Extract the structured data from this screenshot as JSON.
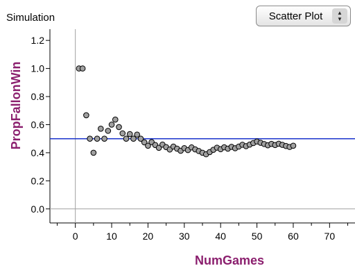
{
  "panel": {
    "title": "Simulation"
  },
  "plot_type_menu": {
    "selected": "Scatter Plot",
    "stepper_icon": "up-down-arrows-icon"
  },
  "colors": {
    "point_fill": "#a0a0a0",
    "point_stroke": "#000000",
    "reference_line": "#1a33cc",
    "axis_title": "#8b1f6e",
    "zero_line": "#a0a0a0"
  },
  "chart_data": {
    "type": "scatter",
    "title": "",
    "xlabel": "NumGames",
    "ylabel": "PropFallonWin",
    "xlim": [
      -7,
      77
    ],
    "ylim": [
      -0.1,
      1.28
    ],
    "xticks": [
      0,
      10,
      20,
      30,
      40,
      50,
      60,
      70
    ],
    "yticks": [
      0.0,
      0.2,
      0.4,
      0.6,
      0.8,
      1.0,
      1.2
    ],
    "xtick_labels": [
      "0",
      "10",
      "20",
      "30",
      "40",
      "50",
      "60",
      "70"
    ],
    "ytick_labels": [
      "0.0",
      "0.2",
      "0.4",
      "0.6",
      "0.8",
      "1.0",
      "1.2"
    ],
    "reference_line_y": 0.5,
    "grid": false,
    "series": [
      {
        "x": [
          1,
          2,
          3,
          4,
          5,
          6,
          7,
          8,
          9,
          10,
          11,
          12,
          13,
          14,
          15,
          16,
          17,
          18,
          19,
          20,
          21,
          22,
          23,
          24,
          25,
          26,
          27,
          28,
          29,
          30,
          31,
          32,
          33,
          34,
          35,
          36,
          37,
          38,
          39,
          40,
          41,
          42,
          43,
          44,
          45,
          46,
          47,
          48,
          49,
          50,
          51,
          52,
          53,
          54,
          55,
          56,
          57,
          58,
          59,
          60
        ],
        "y": [
          1.0,
          1.0,
          0.667,
          0.5,
          0.4,
          0.5,
          0.571,
          0.5,
          0.556,
          0.6,
          0.636,
          0.583,
          0.538,
          0.5,
          0.533,
          0.5,
          0.529,
          0.5,
          0.474,
          0.45,
          0.476,
          0.455,
          0.435,
          0.458,
          0.44,
          0.423,
          0.444,
          0.429,
          0.414,
          0.433,
          0.419,
          0.438,
          0.424,
          0.412,
          0.4,
          0.389,
          0.405,
          0.421,
          0.436,
          0.425,
          0.439,
          0.429,
          0.442,
          0.432,
          0.444,
          0.457,
          0.447,
          0.458,
          0.469,
          0.48,
          0.471,
          0.462,
          0.453,
          0.463,
          0.455,
          0.464,
          0.456,
          0.448,
          0.441,
          0.45
        ]
      }
    ]
  }
}
